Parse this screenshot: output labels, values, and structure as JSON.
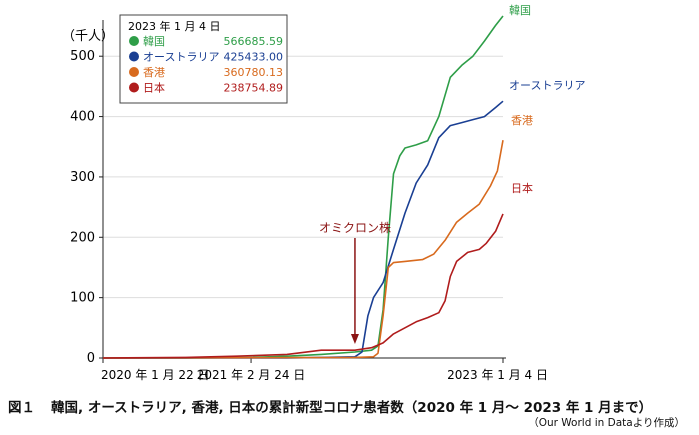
{
  "chart_data": {
    "type": "line",
    "ylabel": "（千人）",
    "ylim": [
      0,
      560
    ],
    "yticks": [
      0,
      100,
      200,
      300,
      400,
      500
    ],
    "x_tick_labels": [
      "2020 年 1 月 22 日",
      "2021 年 2 月 24 日",
      "2023 年 1 月 4 日"
    ],
    "xlim": [
      "2020-01-22",
      "2023-01-04"
    ],
    "grid": true,
    "legend": {
      "title": "2023 年 1 月 4 日",
      "placement": "top-left"
    },
    "annotation": {
      "text": "オミクロン株",
      "date": "2021-12-01"
    },
    "series": [
      {
        "name": "韓国",
        "label_value": "566685.59",
        "color": "#2e9e48",
        "points": [
          [
            "2020-01-22",
            0
          ],
          [
            "2020-09-01",
            0
          ],
          [
            "2021-03-01",
            1
          ],
          [
            "2021-06-01",
            3
          ],
          [
            "2021-09-01",
            6
          ],
          [
            "2021-12-01",
            10
          ],
          [
            "2022-01-15",
            13
          ],
          [
            "2022-02-01",
            20
          ],
          [
            "2022-02-15",
            80
          ],
          [
            "2022-03-01",
            200
          ],
          [
            "2022-03-15",
            305
          ],
          [
            "2022-04-01",
            335
          ],
          [
            "2022-04-15",
            348
          ],
          [
            "2022-05-15",
            353
          ],
          [
            "2022-06-15",
            360
          ],
          [
            "2022-07-15",
            400
          ],
          [
            "2022-08-15",
            465
          ],
          [
            "2022-09-15",
            485
          ],
          [
            "2022-10-15",
            500
          ],
          [
            "2022-11-15",
            525
          ],
          [
            "2022-12-15",
            551
          ],
          [
            "2023-01-04",
            566.69
          ]
        ]
      },
      {
        "name": "オーストラリア",
        "label_value": "425433.00",
        "color": "#1a3f93",
        "points": [
          [
            "2020-01-22",
            0
          ],
          [
            "2020-09-01",
            0
          ],
          [
            "2021-03-01",
            0
          ],
          [
            "2021-06-01",
            0
          ],
          [
            "2021-09-01",
            1
          ],
          [
            "2021-12-01",
            2
          ],
          [
            "2021-12-20",
            10
          ],
          [
            "2022-01-05",
            70
          ],
          [
            "2022-01-20",
            100
          ],
          [
            "2022-02-15",
            125
          ],
          [
            "2022-03-15",
            180
          ],
          [
            "2022-04-15",
            240
          ],
          [
            "2022-05-15",
            290
          ],
          [
            "2022-06-15",
            320
          ],
          [
            "2022-07-15",
            365
          ],
          [
            "2022-08-15",
            385
          ],
          [
            "2022-09-15",
            390
          ],
          [
            "2022-10-15",
            395
          ],
          [
            "2022-11-15",
            400
          ],
          [
            "2022-12-15",
            415
          ],
          [
            "2023-01-04",
            425.43
          ]
        ]
      },
      {
        "name": "香港",
        "label_value": "360780.13",
        "color": "#d86a1e",
        "points": [
          [
            "2020-01-22",
            0
          ],
          [
            "2021-12-01",
            1
          ],
          [
            "2022-01-20",
            2
          ],
          [
            "2022-02-01",
            8
          ],
          [
            "2022-02-15",
            70
          ],
          [
            "2022-03-01",
            150
          ],
          [
            "2022-03-15",
            158
          ],
          [
            "2022-04-15",
            160
          ],
          [
            "2022-06-01",
            163
          ],
          [
            "2022-07-01",
            172
          ],
          [
            "2022-08-01",
            195
          ],
          [
            "2022-09-01",
            225
          ],
          [
            "2022-10-01",
            240
          ],
          [
            "2022-11-01",
            255
          ],
          [
            "2022-12-01",
            285
          ],
          [
            "2022-12-20",
            310
          ],
          [
            "2023-01-04",
            360.78
          ]
        ]
      },
      {
        "name": "日本",
        "label_value": "238754.89",
        "color": "#b01c1c",
        "points": [
          [
            "2020-01-22",
            0
          ],
          [
            "2020-09-01",
            1
          ],
          [
            "2021-01-15",
            3
          ],
          [
            "2021-06-01",
            6
          ],
          [
            "2021-09-01",
            13
          ],
          [
            "2021-12-01",
            13
          ],
          [
            "2022-01-15",
            17
          ],
          [
            "2022-02-15",
            25
          ],
          [
            "2022-03-15",
            40
          ],
          [
            "2022-04-15",
            50
          ],
          [
            "2022-05-15",
            60
          ],
          [
            "2022-06-15",
            67
          ],
          [
            "2022-07-15",
            75
          ],
          [
            "2022-08-01",
            95
          ],
          [
            "2022-08-15",
            135
          ],
          [
            "2022-09-01",
            160
          ],
          [
            "2022-10-01",
            175
          ],
          [
            "2022-11-01",
            180
          ],
          [
            "2022-11-20",
            190
          ],
          [
            "2022-12-15",
            210
          ],
          [
            "2023-01-04",
            238.75
          ]
        ]
      }
    ]
  },
  "caption": {
    "figure_label": "図１",
    "text": "韓国, オーストラリア, 香港, 日本の累計新型コロナ患者数（2020 年 1 月～ 2023 年 1 月まで）"
  },
  "source": "（Our World in Dataより作成）"
}
